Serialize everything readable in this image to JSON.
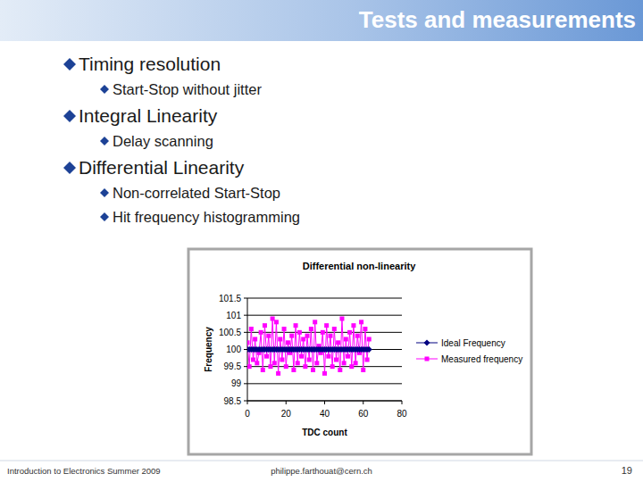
{
  "slide": {
    "title": "Tests and measurements",
    "bullets": [
      {
        "text": "Timing resolution",
        "sub": [
          "Start-Stop without jitter"
        ]
      },
      {
        "text": "Integral Linearity",
        "sub": [
          "Delay scanning"
        ]
      },
      {
        "text": "Differential Linearity",
        "sub": [
          "Non-correlated Start-Stop",
          "Hit frequency histogramming"
        ]
      }
    ],
    "footer": {
      "left": "Introduction to Electronics Summer 2009",
      "center": "philippe.farthouat@cern.ch",
      "page": 19
    }
  },
  "chart_data": {
    "type": "line",
    "title": "Differential non-linearity",
    "x_label": "TDC count",
    "y_label": "Frequency",
    "x": [
      0,
      1,
      2,
      3,
      4,
      5,
      6,
      7,
      8,
      9,
      10,
      11,
      12,
      13,
      14,
      15,
      16,
      17,
      18,
      19,
      20,
      21,
      22,
      23,
      24,
      25,
      26,
      27,
      28,
      29,
      30,
      31,
      32,
      33,
      34,
      35,
      36,
      37,
      38,
      39,
      40,
      41,
      42,
      43,
      44,
      45,
      46,
      47,
      48,
      49,
      50,
      51,
      52,
      53,
      54,
      55,
      56,
      57,
      58,
      59,
      60,
      61,
      62,
      63
    ],
    "series": [
      {
        "name": "Ideal Frequency",
        "color": "#000080",
        "marker": "diamond",
        "values": [
          100,
          100,
          100,
          100,
          100,
          100,
          100,
          100,
          100,
          100,
          100,
          100,
          100,
          100,
          100,
          100,
          100,
          100,
          100,
          100,
          100,
          100,
          100,
          100,
          100,
          100,
          100,
          100,
          100,
          100,
          100,
          100,
          100,
          100,
          100,
          100,
          100,
          100,
          100,
          100,
          100,
          100,
          100,
          100,
          100,
          100,
          100,
          100,
          100,
          100,
          100,
          100,
          100,
          100,
          100,
          100,
          100,
          100,
          100,
          100,
          100,
          100,
          100,
          100
        ]
      },
      {
        "name": "Measured frequency",
        "color": "#ff00ff",
        "marker": "square",
        "values": [
          100.2,
          99.5,
          100.6,
          99.7,
          100.3,
          99.6,
          99.9,
          100.5,
          99.4,
          100.7,
          99.8,
          100.4,
          99.5,
          100.9,
          99.6,
          100.8,
          99.3,
          100.3,
          99.7,
          100.6,
          99.5,
          100.2,
          99.9,
          100.4,
          99.4,
          100.7,
          99.6,
          100.5,
          99.8,
          100.3,
          99.5,
          100.4,
          99.7,
          100.6,
          99.4,
          100.8,
          99.6,
          100.1,
          99.9,
          100.5,
          99.3,
          100.7,
          99.8,
          100.4,
          99.5,
          100.6,
          99.7,
          100.2,
          99.4,
          100.9,
          99.6,
          100.3,
          99.8,
          100.5,
          99.5,
          100.7,
          99.6,
          100.4,
          99.9,
          100.8,
          99.4,
          100.6,
          99.7,
          100.3
        ]
      }
    ],
    "xlim": [
      0,
      80
    ],
    "xticks": [
      0,
      20,
      40,
      60,
      80
    ],
    "ylim": [
      98.5,
      101.5
    ],
    "yticks": [
      101.5,
      101,
      100.5,
      100,
      99.5,
      99,
      98.5
    ],
    "grid": true,
    "legend": "right"
  }
}
